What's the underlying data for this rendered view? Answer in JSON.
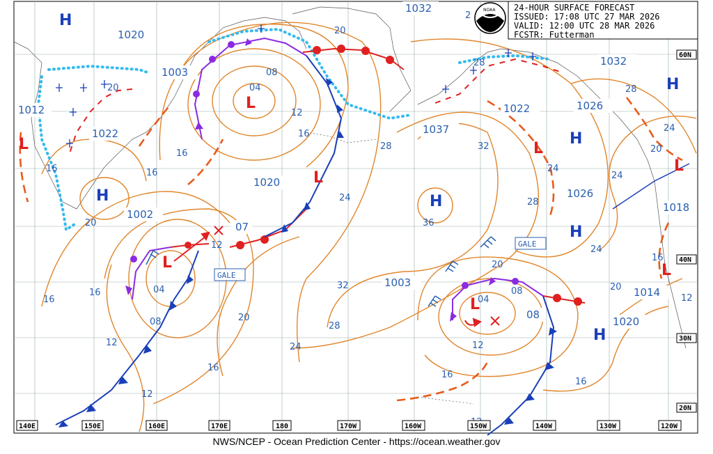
{
  "header": {
    "title": "24-HOUR SURFACE FORECAST",
    "issued": "ISSUED: 17:08 UTC 27 MAR 2026",
    "valid": "VALID:  12:00 UTC 28 MAR 2026",
    "forecaster": "FCSTR:  Futterman",
    "logo_text": "NOAA"
  },
  "footer": "NWS/NCEP - Ocean Prediction Center - https://ocean.weather.gov",
  "longitude_labels": [
    "140E",
    "150E",
    "160E",
    "170E",
    "180",
    "170W",
    "160W",
    "150W",
    "140W",
    "130W",
    "120W"
  ],
  "latitude_labels": [
    "60N",
    "40N",
    "30N",
    "20N"
  ],
  "pressure_boxes": [
    "1032",
    "1020",
    "1003",
    "1012",
    "1022",
    "1037",
    "1020",
    "1002",
    "07",
    "1022",
    "1026",
    "1032",
    "1026",
    "1018",
    "1003",
    "1014",
    "1020",
    "08"
  ],
  "high_label": "H",
  "low_label": "L",
  "gale_label": "GALE",
  "isobar_labels": [
    "20",
    "08",
    "04",
    "12",
    "16",
    "16",
    "16",
    "16",
    "24",
    "28",
    "32",
    "24",
    "28",
    "24",
    "24",
    "20",
    "16",
    "12",
    "04",
    "08",
    "12",
    "20",
    "16",
    "12",
    "28",
    "32",
    "36",
    "16",
    "20",
    "24",
    "24",
    "20",
    "28",
    "16",
    "12",
    "12",
    "2"
  ],
  "colors": {
    "isobar": "#e0852a",
    "cold_front": "#1a3fb8",
    "warm_front": "#e02020",
    "occluded": "#8a2be2",
    "ice_edge": "#33bbee",
    "label": "#2a5fb0"
  }
}
